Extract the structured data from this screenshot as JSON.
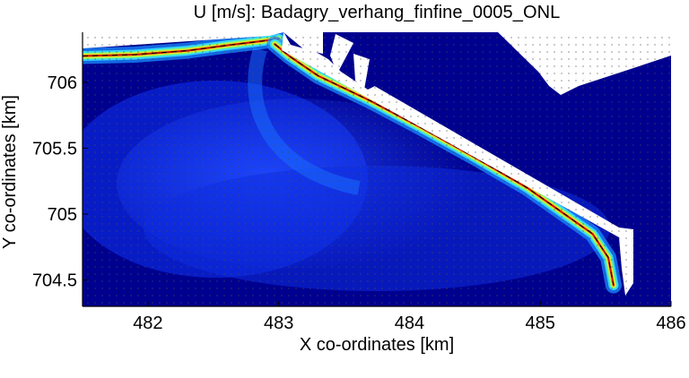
{
  "chart_data": {
    "type": "heatmap",
    "title": "U [m/s]: Badagry_verhang_finfine_0005_ONL",
    "xlabel": "X co-ordinates [km]",
    "ylabel": "Y co-ordinates [km]",
    "xlim": [
      481.5,
      486.0
    ],
    "ylim": [
      704.3,
      706.38
    ],
    "x_ticks": [
      482,
      483,
      484,
      485,
      486
    ],
    "y_ticks": [
      704.5,
      705,
      705.5,
      706
    ],
    "x_tick_labels": [
      "482",
      "483",
      "484",
      "485",
      "486"
    ],
    "y_tick_labels": [
      "704.5",
      "705",
      "705.5",
      "706"
    ],
    "colormap": "jet",
    "background_color": "#00008f",
    "land_color": "#ffffff",
    "high_speed_color": "#c81400",
    "high_speed_zones": [
      {
        "name": "coastline",
        "path": [
          [
            481.5,
            706.2
          ],
          [
            481.9,
            706.21
          ],
          [
            482.3,
            706.24
          ],
          [
            482.6,
            706.28
          ],
          [
            482.85,
            706.31
          ],
          [
            483.0,
            706.33
          ]
        ]
      },
      {
        "name": "breakwater",
        "path": [
          [
            482.97,
            706.29
          ],
          [
            483.08,
            706.2
          ],
          [
            483.3,
            706.05
          ],
          [
            483.7,
            705.86
          ],
          [
            484.1,
            705.65
          ],
          [
            484.5,
            705.43
          ],
          [
            484.9,
            705.2
          ],
          [
            485.2,
            704.99
          ],
          [
            485.4,
            704.85
          ],
          [
            485.52,
            704.67
          ],
          [
            485.56,
            704.46
          ]
        ]
      }
    ]
  }
}
